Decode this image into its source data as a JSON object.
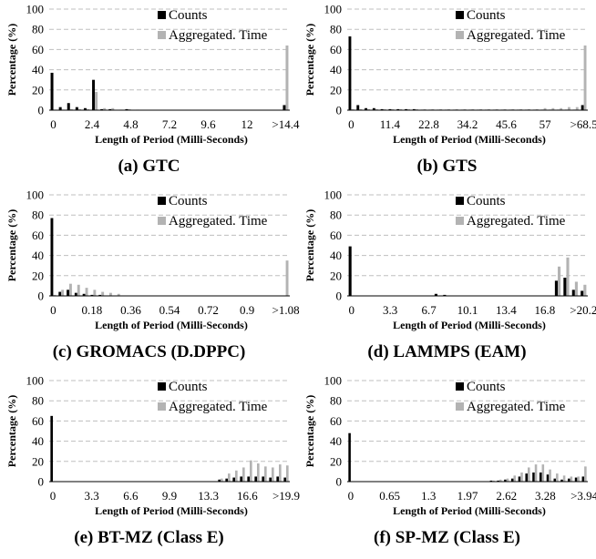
{
  "colors": {
    "counts": "#000000",
    "time": "#b3b3b3",
    "grid": "#bfbfbf",
    "axis": "#000000"
  },
  "chart_data": [
    {
      "type": "bar",
      "caption": "(a) GTC",
      "xlabel": "Length of Period (Milli-Seconds)",
      "ylabel": "Percentage (%)",
      "ylim": [
        0,
        100
      ],
      "yticks": [
        0,
        20,
        40,
        60,
        80,
        100
      ],
      "grid": "horizontal dashed",
      "legend_position": "top-right",
      "tick_labels": [
        "0",
        "2.4",
        "4.8",
        "7.2",
        "9.6",
        "12",
        ">14.4"
      ],
      "series": [
        {
          "name": "Counts",
          "values": [
            37,
            3,
            7,
            3,
            2,
            30,
            1,
            1,
            0,
            1,
            0,
            0,
            0,
            0,
            0,
            0,
            0,
            0,
            0,
            0,
            0,
            0,
            0,
            0,
            0,
            0,
            0,
            0,
            5
          ]
        },
        {
          "name": "Aggregated. Time",
          "values": [
            0.5,
            0.5,
            1,
            1,
            1,
            18,
            2,
            2,
            0.5,
            1,
            0.5,
            0,
            0,
            0,
            0,
            0,
            0,
            0,
            0,
            0,
            0,
            0,
            0,
            0,
            0,
            0,
            0,
            0,
            64
          ]
        }
      ]
    },
    {
      "type": "bar",
      "caption": "(b) GTS",
      "xlabel": "Length of Period (Milli-Seconds)",
      "ylabel": "Percentage (%)",
      "ylim": [
        0,
        100
      ],
      "yticks": [
        0,
        20,
        40,
        60,
        80,
        100
      ],
      "grid": "horizontal dashed",
      "legend_position": "top-right",
      "tick_labels": [
        "0",
        "11.4",
        "22.8",
        "34.2",
        "45.6",
        "57",
        ">68.5"
      ],
      "series": [
        {
          "name": "Counts",
          "values": [
            73,
            5,
            2,
            2,
            1,
            1,
            1,
            1,
            1,
            0.5,
            0.5,
            0.5,
            0.5,
            0.5,
            0.5,
            0.5,
            0.5,
            0.5,
            0.5,
            0.5,
            0.5,
            0.5,
            0.5,
            0.5,
            0.5,
            0.5,
            0.5,
            0.5,
            0.5,
            5
          ]
        },
        {
          "name": "Aggregated. Time",
          "values": [
            1,
            1,
            1,
            1,
            1,
            1,
            1,
            1,
            1,
            1,
            1,
            1,
            1,
            1,
            1,
            1,
            1,
            1,
            1,
            1,
            1,
            1,
            1,
            1,
            2,
            2,
            2,
            3,
            3,
            64
          ]
        }
      ]
    },
    {
      "type": "bar",
      "caption": "(c) GROMACS (D.DPPC)",
      "xlabel": "Length of Period (Milli-Seconds)",
      "ylabel": "Percentage (%)",
      "ylim": [
        0,
        100
      ],
      "yticks": [
        0,
        20,
        40,
        60,
        80,
        100
      ],
      "grid": "horizontal dashed",
      "legend_position": "top-right",
      "tick_labels": [
        "0",
        "0.18",
        "0.36",
        "0.54",
        "0.72",
        "0.9",
        ">1.08"
      ],
      "series": [
        {
          "name": "Counts",
          "values": [
            77,
            4,
            6,
            3,
            2,
            1,
            1,
            0,
            0,
            0,
            0,
            0,
            0,
            0,
            0,
            0,
            0,
            0,
            0,
            0,
            0,
            0,
            0,
            0,
            0,
            0,
            0,
            0,
            0,
            0
          ]
        },
        {
          "name": "Aggregated. Time",
          "values": [
            1,
            6,
            12,
            11,
            8,
            6,
            4,
            3,
            2,
            0,
            0,
            0,
            0,
            0,
            0,
            0,
            0,
            0,
            0,
            0,
            0,
            0,
            0,
            0,
            0,
            0,
            0,
            0,
            0,
            35
          ]
        }
      ]
    },
    {
      "type": "bar",
      "caption": "(d) LAMMPS (EAM)",
      "xlabel": "Length of Period (Milli-Seconds)",
      "ylabel": "Percentage (%)",
      "ylim": [
        0,
        100
      ],
      "yticks": [
        0,
        20,
        40,
        60,
        80,
        100
      ],
      "grid": "horizontal dashed",
      "legend_position": "top-right",
      "tick_labels": [
        "0",
        "3.3",
        "6.7",
        "10.1",
        "13.4",
        "16.8",
        ">20.2"
      ],
      "series": [
        {
          "name": "Counts",
          "values": [
            49,
            0,
            0,
            0,
            0,
            0,
            0,
            0,
            0,
            0,
            2,
            1,
            0,
            0,
            0,
            0,
            0,
            0,
            0,
            0,
            0,
            0,
            0,
            0,
            15,
            18,
            6,
            5
          ]
        },
        {
          "name": "Aggregated. Time",
          "values": [
            0,
            0,
            0,
            0,
            0,
            0,
            0,
            0,
            0,
            0,
            0,
            0,
            0,
            0,
            0,
            0,
            0,
            0,
            0,
            0,
            0,
            0,
            0,
            0,
            29,
            38,
            14,
            11
          ]
        }
      ]
    },
    {
      "type": "bar",
      "caption": "(e) BT-MZ (Class E)",
      "xlabel": "Length of Period (Milli-Seconds)",
      "ylabel": "Percentage (%)",
      "ylim": [
        0,
        100
      ],
      "yticks": [
        0,
        20,
        40,
        60,
        80,
        100
      ],
      "grid": "horizontal dashed",
      "legend_position": "top-right",
      "tick_labels": [
        "0",
        "3.3",
        "6.6",
        "9.9",
        "13.3",
        "16.6",
        ">19.9"
      ],
      "series": [
        {
          "name": "Counts",
          "values": [
            65,
            0,
            0,
            0,
            0,
            0,
            0,
            0,
            0,
            0,
            0,
            0,
            0,
            0,
            0,
            0,
            0,
            0,
            0,
            0,
            0,
            0,
            0,
            2,
            3,
            4,
            5,
            5,
            5,
            5,
            4,
            5,
            4
          ]
        },
        {
          "name": "Aggregated. Time",
          "values": [
            0,
            0,
            0,
            0,
            0,
            0,
            0,
            0,
            0,
            0,
            0,
            0,
            0,
            0,
            0,
            0,
            0,
            0,
            0,
            0,
            0,
            0,
            0,
            3,
            8,
            11,
            14,
            21,
            18,
            15,
            14,
            17,
            16
          ]
        }
      ]
    },
    {
      "type": "bar",
      "caption": "(f) SP-MZ (Class E)",
      "xlabel": "Length of Period (Milli-Seconds)",
      "ylabel": "Percentage (%)",
      "ylim": [
        0,
        100
      ],
      "yticks": [
        0,
        20,
        40,
        60,
        80,
        100
      ],
      "grid": "horizontal dashed",
      "legend_position": "top-right",
      "tick_labels": [
        "0",
        "0.65",
        "1.3",
        "1.97",
        "2.62",
        "3.28",
        ">3.94"
      ],
      "series": [
        {
          "name": "Counts",
          "values": [
            48,
            0,
            0,
            0,
            0,
            0,
            0,
            0,
            0,
            0,
            0,
            0,
            0,
            0,
            0,
            0,
            0,
            0,
            0,
            0,
            1,
            1,
            2,
            3,
            5,
            8,
            9,
            9,
            7,
            3,
            2,
            3,
            4,
            5
          ]
        },
        {
          "name": "Aggregated. Time",
          "values": [
            0,
            0,
            0,
            0,
            0,
            0,
            0,
            0,
            0,
            0,
            0,
            0,
            0,
            0,
            0,
            0,
            0,
            0,
            0,
            0,
            1,
            2,
            3,
            6,
            9,
            14,
            17,
            17,
            12,
            8,
            6,
            5,
            5,
            15
          ]
        }
      ]
    }
  ]
}
